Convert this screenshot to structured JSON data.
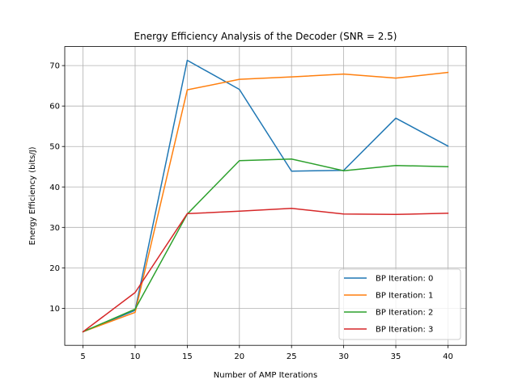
{
  "chart_data": {
    "type": "line",
    "title": "Energy Efficiency Analysis of the Decoder (SNR = 2.5)",
    "xlabel": "Number of AMP Iterations",
    "ylabel": "Energy Efficiency (bits/J)",
    "x": [
      5,
      10,
      15,
      20,
      25,
      30,
      35,
      40
    ],
    "xlim": [
      3.25,
      41.75
    ],
    "ylim": [
      0.85,
      74.7
    ],
    "xticks": [
      5,
      10,
      15,
      20,
      25,
      30,
      35,
      40
    ],
    "yticks": [
      10,
      20,
      30,
      40,
      50,
      60,
      70
    ],
    "grid": true,
    "legend_position": "lower-right",
    "series": [
      {
        "name": "BP Iteration: 0",
        "color": "#1f77b4",
        "values": [
          4.2,
          9.5,
          71.3,
          64.1,
          43.9,
          44.1,
          57.0,
          50.1
        ]
      },
      {
        "name": "BP Iteration: 1",
        "color": "#ff7f0e",
        "values": [
          4.2,
          9.0,
          64.0,
          66.6,
          67.2,
          67.9,
          66.9,
          68.3
        ]
      },
      {
        "name": "BP Iteration: 2",
        "color": "#2ca02c",
        "values": [
          4.2,
          9.8,
          33.3,
          46.5,
          46.9,
          44.0,
          45.3,
          45.0
        ]
      },
      {
        "name": "BP Iteration: 3",
        "color": "#d62728",
        "values": [
          4.2,
          13.9,
          33.4,
          34.0,
          34.7,
          33.3,
          33.2,
          33.5
        ]
      }
    ]
  }
}
